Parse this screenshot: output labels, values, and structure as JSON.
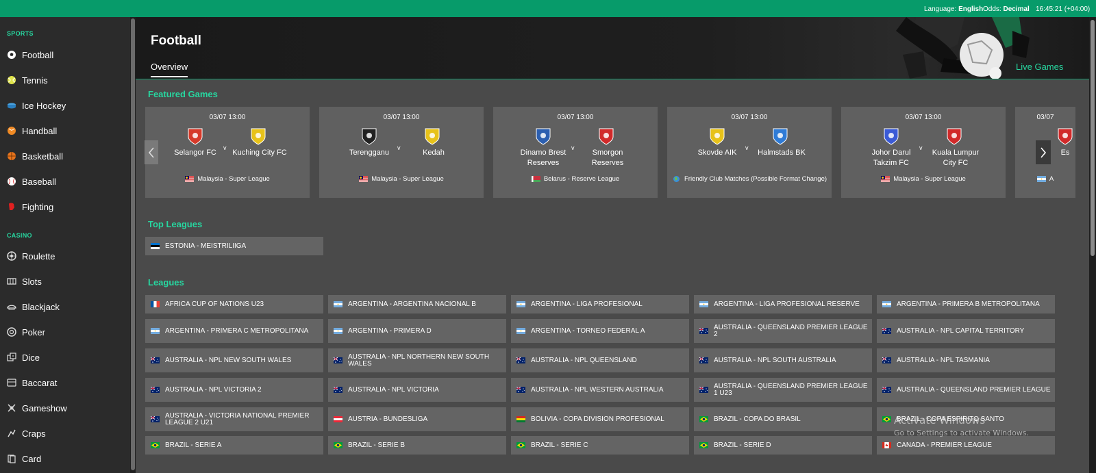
{
  "topbar": {
    "language_label": "Language:",
    "language_value": "English",
    "odds_label": "Odds:",
    "odds_value": "Decimal",
    "clock": "16:45:21 (+04:00)"
  },
  "sidebar": {
    "sports_heading": "SPORTS",
    "sports": [
      {
        "label": "Football",
        "icon": "soccer-ball-icon"
      },
      {
        "label": "Tennis",
        "icon": "tennis-ball-icon"
      },
      {
        "label": "Ice Hockey",
        "icon": "puck-icon"
      },
      {
        "label": "Handball",
        "icon": "handball-icon"
      },
      {
        "label": "Basketball",
        "icon": "basketball-icon"
      },
      {
        "label": "Baseball",
        "icon": "baseball-icon"
      },
      {
        "label": "Fighting",
        "icon": "boxing-glove-icon"
      }
    ],
    "casino_heading": "CASINO",
    "casino": [
      {
        "label": "Roulette",
        "icon": "roulette-icon"
      },
      {
        "label": "Slots",
        "icon": "slots-icon"
      },
      {
        "label": "Blackjack",
        "icon": "blackjack-icon"
      },
      {
        "label": "Poker",
        "icon": "poker-chip-icon"
      },
      {
        "label": "Dice",
        "icon": "dice-icon"
      },
      {
        "label": "Baccarat",
        "icon": "baccarat-icon"
      },
      {
        "label": "Gameshow",
        "icon": "gameshow-icon"
      },
      {
        "label": "Craps",
        "icon": "craps-icon"
      },
      {
        "label": "Card",
        "icon": "card-icon"
      }
    ]
  },
  "header": {
    "title": "Football",
    "tab_overview": "Overview",
    "live_games": "Live Games"
  },
  "featured": {
    "title": "Featured Games",
    "games": [
      {
        "date": "03/07 13:00",
        "home": "Selangor FC",
        "away": "Kuching City FC",
        "league": "Malaysia - Super League",
        "flag": "malaysia",
        "home_color": "#d63a2a",
        "away_color": "#e7c21a"
      },
      {
        "date": "03/07 13:00",
        "home": "Terengganu",
        "away": "Kedah",
        "league": "Malaysia - Super League",
        "flag": "malaysia",
        "home_color": "#222222",
        "away_color": "#e7c21a"
      },
      {
        "date": "03/07 13:00",
        "home": "Dinamo Brest Reserves",
        "away": "Smorgon Reserves",
        "league": "Belarus - Reserve League",
        "flag": "belarus",
        "home_color": "#2c5fb0",
        "away_color": "#d12a2a"
      },
      {
        "date": "03/07 13:00",
        "home": "Skovde AIK",
        "away": "Halmstads BK",
        "league": "Friendly Club Matches (Possible Format Change)",
        "flag": "world",
        "home_color": "#e7c21a",
        "away_color": "#2f7bd6"
      },
      {
        "date": "03/07 13:00",
        "home": "Johor Darul Takzim FC",
        "away": "Kuala Lumpur City FC",
        "league": "Malaysia - Super League",
        "flag": "malaysia",
        "home_color": "#3b5bd6",
        "away_color": "#d12a2a"
      },
      {
        "date": "03/07",
        "home": "Es",
        "away": "",
        "league": "A",
        "flag": "argentina",
        "home_color": "#d12a2a",
        "away_color": "#d12a2a"
      }
    ]
  },
  "top_leagues": {
    "title": "Top Leagues",
    "items": [
      {
        "label": "ESTONIA - MEISTRILIIGA",
        "flag": "estonia"
      }
    ]
  },
  "leagues": {
    "title": "Leagues",
    "items": [
      {
        "label": "AFRICA CUP OF NATIONS U23",
        "flag": "france"
      },
      {
        "label": "ARGENTINA - ARGENTINA NACIONAL B",
        "flag": "argentina"
      },
      {
        "label": "ARGENTINA - LIGA PROFESIONAL",
        "flag": "argentina"
      },
      {
        "label": "ARGENTINA - LIGA PROFESIONAL RESERVE",
        "flag": "argentina"
      },
      {
        "label": "ARGENTINA - PRIMERA B METROPOLITANA",
        "flag": "argentina"
      },
      {
        "label": "ARGENTINA - PRIMERA C METROPOLITANA",
        "flag": "argentina"
      },
      {
        "label": "ARGENTINA - PRIMERA D",
        "flag": "argentina"
      },
      {
        "label": "ARGENTINA - TORNEO FEDERAL A",
        "flag": "argentina"
      },
      {
        "label": "AUSTRALIA - QUEENSLAND PREMIER LEAGUE 2",
        "flag": "australia"
      },
      {
        "label": "AUSTRALIA - NPL CAPITAL TERRITORY",
        "flag": "australia"
      },
      {
        "label": "AUSTRALIA - NPL NEW SOUTH WALES",
        "flag": "australia"
      },
      {
        "label": "AUSTRALIA - NPL NORTHERN NEW SOUTH WALES",
        "flag": "australia"
      },
      {
        "label": "AUSTRALIA - NPL QUEENSLAND",
        "flag": "australia"
      },
      {
        "label": "AUSTRALIA - NPL SOUTH AUSTRALIA",
        "flag": "australia"
      },
      {
        "label": "AUSTRALIA - NPL TASMANIA",
        "flag": "australia"
      },
      {
        "label": "AUSTRALIA - NPL VICTORIA 2",
        "flag": "australia"
      },
      {
        "label": "AUSTRALIA - NPL VICTORIA",
        "flag": "australia"
      },
      {
        "label": "AUSTRALIA - NPL WESTERN AUSTRALIA",
        "flag": "australia"
      },
      {
        "label": "AUSTRALIA - QUEENSLAND PREMIER LEAGUE 1 U23",
        "flag": "australia"
      },
      {
        "label": "AUSTRALIA - QUEENSLAND PREMIER LEAGUE",
        "flag": "australia"
      },
      {
        "label": "AUSTRALIA - VICTORIA NATIONAL PREMIER LEAGUE 2 U21",
        "flag": "australia"
      },
      {
        "label": "AUSTRIA - BUNDESLIGA",
        "flag": "austria"
      },
      {
        "label": "BOLIVIA - COPA DIVISION PROFESIONAL",
        "flag": "bolivia"
      },
      {
        "label": "BRAZIL - COPA DO BRASIL",
        "flag": "brazil"
      },
      {
        "label": "BRAZIL - COPA ESPIRITO SANTO",
        "flag": "brazil"
      },
      {
        "label": "BRAZIL - SERIE A",
        "flag": "brazil"
      },
      {
        "label": "BRAZIL - SERIE B",
        "flag": "brazil"
      },
      {
        "label": "BRAZIL - SERIE C",
        "flag": "brazil"
      },
      {
        "label": "BRAZIL - SERIE D",
        "flag": "brazil"
      },
      {
        "label": "CANADA - PREMIER LEAGUE",
        "flag": "canada"
      }
    ]
  },
  "watermark": {
    "line1": "Activate Windows",
    "line2": "Go to Settings to activate Windows."
  }
}
